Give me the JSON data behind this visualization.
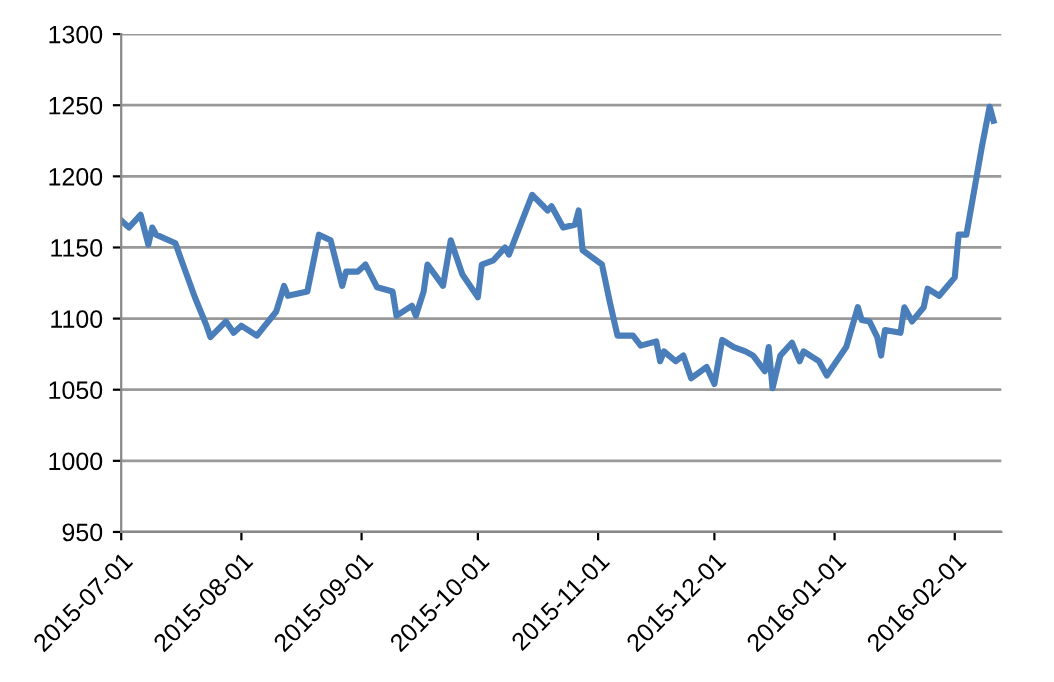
{
  "chart_data": {
    "type": "line",
    "ylim": [
      950,
      1300
    ],
    "yticks": [
      950,
      1000,
      1050,
      1100,
      1150,
      1200,
      1250,
      1300
    ],
    "xlim": [
      "2015-07-01",
      "2016-02-13"
    ],
    "xticks": [
      {
        "value": "2015-07-01",
        "label": "2015-07-01"
      },
      {
        "value": "2015-08-01",
        "label": "2015-08-01"
      },
      {
        "value": "2015-09-01",
        "label": "2015-09-01"
      },
      {
        "value": "2015-10-01",
        "label": "2015-10-01"
      },
      {
        "value": "2015-11-01",
        "label": "2015-11-01"
      },
      {
        "value": "2015-12-01",
        "label": "2015-12-01"
      },
      {
        "value": "2016-01-01",
        "label": "2016-01-01"
      },
      {
        "value": "2016-02-01",
        "label": "2016-02-01"
      }
    ],
    "grid": "y",
    "marker": "none",
    "line_style": "solid",
    "x": [
      "2015-07-01",
      "2015-07-03",
      "2015-07-06",
      "2015-07-08",
      "2015-07-09",
      "2015-07-10",
      "2015-07-15",
      "2015-07-16",
      "2015-07-20",
      "2015-07-23",
      "2015-07-24",
      "2015-07-28",
      "2015-07-30",
      "2015-08-01",
      "2015-08-05",
      "2015-08-10",
      "2015-08-12",
      "2015-08-13",
      "2015-08-18",
      "2015-08-21",
      "2015-08-24",
      "2015-08-27",
      "2015-08-28",
      "2015-08-31",
      "2015-09-02",
      "2015-09-05",
      "2015-09-09",
      "2015-09-10",
      "2015-09-14",
      "2015-09-15",
      "2015-09-17",
      "2015-09-18",
      "2015-09-22",
      "2015-09-24",
      "2015-09-27",
      "2015-10-01",
      "2015-10-02",
      "2015-10-05",
      "2015-10-08",
      "2015-10-09",
      "2015-10-12",
      "2015-10-15",
      "2015-10-19",
      "2015-10-20",
      "2015-10-23",
      "2015-10-26",
      "2015-10-27",
      "2015-10-28",
      "2015-11-02",
      "2015-11-04",
      "2015-11-06",
      "2015-11-10",
      "2015-11-12",
      "2015-11-16",
      "2015-11-17",
      "2015-11-18",
      "2015-11-21",
      "2015-11-23",
      "2015-11-25",
      "2015-11-29",
      "2015-12-01",
      "2015-12-03",
      "2015-12-06",
      "2015-12-09",
      "2015-12-11",
      "2015-12-14",
      "2015-12-15",
      "2015-12-16",
      "2015-12-18",
      "2015-12-21",
      "2015-12-23",
      "2015-12-24",
      "2015-12-28",
      "2015-12-30",
      "2016-01-04",
      "2016-01-07",
      "2016-01-08",
      "2016-01-10",
      "2016-01-12",
      "2016-01-13",
      "2016-01-14",
      "2016-01-18",
      "2016-01-19",
      "2016-01-21",
      "2016-01-24",
      "2016-01-25",
      "2016-01-28",
      "2016-02-01",
      "2016-02-02",
      "2016-02-04",
      "2016-02-08",
      "2016-02-10",
      "2016-02-11"
    ],
    "series": [
      {
        "color": "#4a7ebb",
        "values": [
          1169,
          1164,
          1173,
          1152,
          1164,
          1159,
          1153,
          1145,
          1115,
          1095,
          1087,
          1098,
          1090,
          1095,
          1088,
          1105,
          1123,
          1116,
          1119,
          1159,
          1155,
          1123,
          1133,
          1133,
          1138,
          1122,
          1119,
          1102,
          1109,
          1102,
          1119,
          1138,
          1123,
          1155,
          1131,
          1115,
          1138,
          1141,
          1150,
          1145,
          1166,
          1187,
          1176,
          1179,
          1164,
          1166,
          1176,
          1148,
          1138,
          1112,
          1088,
          1088,
          1081,
          1084,
          1070,
          1077,
          1070,
          1074,
          1058,
          1066,
          1054,
          1085,
          1080,
          1077,
          1074,
          1063,
          1080,
          1051,
          1074,
          1083,
          1070,
          1077,
          1070,
          1060,
          1080,
          1108,
          1099,
          1098,
          1087,
          1074,
          1092,
          1090,
          1108,
          1098,
          1108,
          1121,
          1116,
          1129,
          1159,
          1159,
          1221,
          1249,
          1239
        ]
      }
    ]
  }
}
